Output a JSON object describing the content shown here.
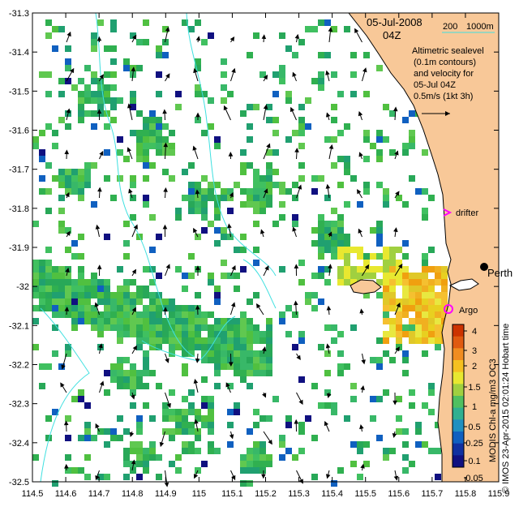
{
  "map": {
    "x_ticks": [
      "114.5",
      "114.6",
      "114.7",
      "114.8",
      "114.9",
      "115",
      "115.1",
      "115.2",
      "115.3",
      "115.4",
      "115.5",
      "115.6",
      "115.7",
      "115.8",
      "115.9"
    ],
    "y_ticks": [
      "-31.3",
      "-31.4",
      "-31.5",
      "-31.6",
      "-31.7",
      "-31.8",
      "-31.9",
      "-32",
      "-32.1",
      "-32.2",
      "-32.3",
      "-32.4",
      "-32.5"
    ],
    "xlim": [
      114.5,
      115.9
    ],
    "ylim": [
      -32.5,
      -31.3
    ],
    "colors": {
      "land": "#f8c898",
      "bathy": "#40e0e0",
      "drifter": "#ff00ff",
      "argo": "#ff00ff"
    }
  },
  "header": {
    "date": "05-Jul-2008",
    "time": "04Z",
    "scale_200": "200",
    "scale_1000": "1000m"
  },
  "legend_text": {
    "line1": "Altimetric sealevel",
    "line2": "(0.1m contours)",
    "line3": "and velocity for",
    "line4": "05-Jul 04Z",
    "line5": "0.5m/s (1kt 3h)"
  },
  "markers": {
    "drifter": "drifter",
    "argo": "Argo",
    "perth": "Perth"
  },
  "colorbar": {
    "ticks": [
      "4",
      "3",
      "2",
      "1.5",
      "1",
      "0.5",
      "0.25",
      "0.1",
      "0.05"
    ]
  },
  "credits": {
    "product": "MODIS Chl-a mg/m3 OC3",
    "imos": "© IMOS 23-Apr-2015 02:01:24 Hobart time"
  }
}
